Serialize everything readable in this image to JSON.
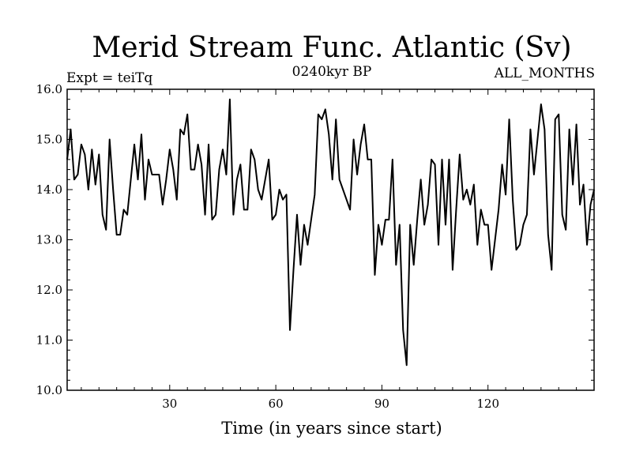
{
  "chart_data": {
    "type": "line",
    "title": "Merid Stream Func. Atlantic (Sv)",
    "subtitle_left": "Expt = teiTq",
    "subtitle_center": "0240kyr BP",
    "subtitle_right": "ALL_MONTHS",
    "xlabel": "Time (in years since start)",
    "ylabel": "",
    "xlim": [
      1,
      150
    ],
    "ylim": [
      10.0,
      16.0
    ],
    "x_ticks": [
      30,
      60,
      90,
      120
    ],
    "x_tick_labels": [
      "30",
      "60",
      "90",
      "120"
    ],
    "y_ticks": [
      10,
      11,
      12,
      13,
      14,
      15,
      16
    ],
    "y_tick_labels": [
      "10.0",
      "11.0",
      "12.0",
      "13.0",
      "14.0",
      "15.0",
      "16.0"
    ],
    "series": [
      {
        "name": "Merid Stream Func. Atlantic",
        "values": [
          14.6,
          15.2,
          14.2,
          14.3,
          14.9,
          14.7,
          14.0,
          14.8,
          14.1,
          14.7,
          13.5,
          13.2,
          15.0,
          14.0,
          13.1,
          13.1,
          13.6,
          13.5,
          14.2,
          14.9,
          14.2,
          15.1,
          13.8,
          14.6,
          14.3,
          14.3,
          14.3,
          13.7,
          14.2,
          14.8,
          14.4,
          13.8,
          15.2,
          15.1,
          15.5,
          14.4,
          14.4,
          14.9,
          14.5,
          13.5,
          14.9,
          13.4,
          13.5,
          14.4,
          14.8,
          14.3,
          15.8,
          13.5,
          14.2,
          14.5,
          13.6,
          13.6,
          14.8,
          14.6,
          14.0,
          13.8,
          14.2,
          14.6,
          13.4,
          13.5,
          14.0,
          13.8,
          13.9,
          11.2,
          12.4,
          13.5,
          12.5,
          13.3,
          12.9,
          13.4,
          13.9,
          15.5,
          15.4,
          15.6,
          15.1,
          14.2,
          15.4,
          14.2,
          14.0,
          13.8,
          13.6,
          15.0,
          14.3,
          14.9,
          15.3,
          14.6,
          14.6,
          12.3,
          13.3,
          12.9,
          13.4,
          13.4,
          14.6,
          12.5,
          13.3,
          11.2,
          10.5,
          13.3,
          12.5,
          13.4,
          14.2,
          13.3,
          13.7,
          14.6,
          14.5,
          12.9,
          14.6,
          13.3,
          14.6,
          12.4,
          13.6,
          14.7,
          13.8,
          14.0,
          13.7,
          14.1,
          12.9,
          13.6,
          13.3,
          13.3,
          12.4,
          13.0,
          13.6,
          14.5,
          13.9,
          15.4,
          13.8,
          12.8,
          12.9,
          13.3,
          13.5,
          15.2,
          14.3,
          15.0,
          15.7,
          15.2,
          13.1,
          12.4,
          15.4,
          15.5,
          13.5,
          13.2,
          15.2,
          14.1,
          15.3,
          13.7,
          14.1,
          12.9,
          13.7,
          14.0
        ]
      }
    ]
  }
}
